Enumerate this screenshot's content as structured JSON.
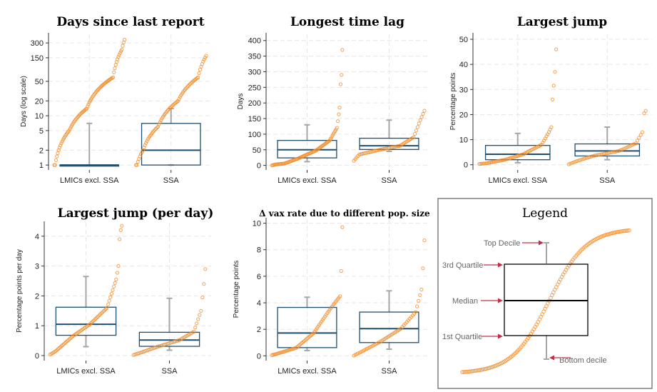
{
  "colors": {
    "box": "#1f4e6e",
    "whisker": "#a6a6a6",
    "point": "#f28c28",
    "point_light": "#f8b98a",
    "grid": "#e6e6e6",
    "legend_arrow": "#c0304a",
    "legend_border": "#7f7f7f"
  },
  "chart_data": [
    {
      "id": "days",
      "type": "box",
      "title": "Days since last report",
      "ylabel": "Days (log scale)",
      "yscale": "log",
      "ylim": [
        0.85,
        450
      ],
      "yticks": [
        1,
        2,
        5,
        10,
        20,
        50,
        150,
        300
      ],
      "categories": [
        "LMICs excl. SSA",
        "SSA"
      ],
      "boxes": [
        {
          "p10": 1,
          "q1": 1,
          "median": 1,
          "q3": 1,
          "p90": 7
        },
        {
          "p10": 1,
          "q1": 1,
          "median": 2,
          "q3": 7,
          "p90": 14
        }
      ],
      "points": [
        [
          [
            0,
            1,
            30
          ],
          [
            0.45,
            1,
            1
          ],
          [
            0.5,
            2,
            4
          ],
          [
            0.58,
            5,
            12
          ],
          [
            0.72,
            14,
            20
          ],
          [
            0.85,
            60,
            30
          ],
          [
            0.95,
            220,
            10
          ],
          [
            1,
            350,
            3
          ]
        ],
        [
          [
            0,
            1,
            25
          ],
          [
            0.35,
            1,
            1
          ],
          [
            0.4,
            2,
            6
          ],
          [
            0.55,
            6,
            15
          ],
          [
            0.7,
            20,
            20
          ],
          [
            0.85,
            60,
            20
          ],
          [
            1,
            165,
            8
          ]
        ]
      ]
    },
    {
      "id": "lag",
      "type": "box",
      "title": "Longest time lag",
      "ylabel": "Days",
      "yscale": "linear",
      "ylim": [
        -10,
        420
      ],
      "yticks": [
        0,
        50,
        100,
        150,
        200,
        250,
        300,
        350,
        400
      ],
      "categories": [
        "LMICs excl. SSA",
        "SSA"
      ],
      "boxes": [
        {
          "p10": 12,
          "q1": 24,
          "median": 50,
          "q3": 80,
          "p90": 130
        },
        {
          "p10": 45,
          "q1": 51,
          "median": 63,
          "q3": 87,
          "p90": 145
        }
      ],
      "points": [
        [
          [
            0,
            0,
            1
          ],
          [
            0.05,
            3,
            4
          ],
          [
            0.15,
            6,
            10
          ],
          [
            0.3,
            22,
            15
          ],
          [
            0.5,
            48,
            20
          ],
          [
            0.7,
            80,
            15
          ],
          [
            0.82,
            120,
            8
          ],
          [
            0.9,
            185,
            3
          ],
          [
            0.94,
            260,
            1
          ],
          [
            0.97,
            290,
            1
          ],
          [
            1,
            370,
            1
          ]
        ],
        [
          [
            0,
            15,
            1
          ],
          [
            0.08,
            35,
            4
          ],
          [
            0.3,
            50,
            15
          ],
          [
            0.55,
            63,
            15
          ],
          [
            0.75,
            90,
            10
          ],
          [
            0.88,
            145,
            5
          ],
          [
            1,
            175,
            3
          ]
        ]
      ]
    },
    {
      "id": "jump",
      "type": "box",
      "title": "Largest jump",
      "ylabel": "Percentage points",
      "yscale": "linear",
      "ylim": [
        -1.5,
        52
      ],
      "yticks": [
        0,
        10,
        20,
        30,
        40,
        50
      ],
      "categories": [
        "LMICs excl. SSA",
        "SSA"
      ],
      "boxes": [
        {
          "p10": 0.8,
          "q1": 2,
          "median": 4.2,
          "q3": 7.7,
          "p90": 12.5
        },
        {
          "p10": 2,
          "q1": 3.5,
          "median": 5.5,
          "q3": 8.3,
          "p90": 15
        }
      ],
      "points": [
        [
          [
            0,
            0.3,
            1
          ],
          [
            0.1,
            0.6,
            6
          ],
          [
            0.3,
            2,
            15
          ],
          [
            0.5,
            4.2,
            15
          ],
          [
            0.72,
            8,
            15
          ],
          [
            0.85,
            13,
            6
          ],
          [
            0.88,
            15,
            2
          ],
          [
            0.92,
            26,
            1
          ],
          [
            0.95,
            31.5,
            1
          ],
          [
            0.97,
            37,
            1
          ],
          [
            1,
            46,
            1
          ]
        ],
        [
          [
            0,
            0.2,
            1
          ],
          [
            0.1,
            1.5,
            5
          ],
          [
            0.3,
            3.6,
            10
          ],
          [
            0.55,
            5.5,
            15
          ],
          [
            0.75,
            8.5,
            10
          ],
          [
            0.88,
            13,
            4
          ],
          [
            0.94,
            20.5,
            1
          ],
          [
            1,
            21.5,
            1
          ]
        ]
      ]
    },
    {
      "id": "jumpday",
      "type": "box",
      "title": "Largest jump (per day)",
      "ylabel": "Percentage points per day",
      "yscale": "linear",
      "ylim": [
        -0.12,
        4.45
      ],
      "yticks": [
        0,
        1,
        2,
        3,
        4
      ],
      "categories": [
        "LMICs excl. SSA",
        "SSA"
      ],
      "boxes": [
        {
          "p10": 0.3,
          "q1": 0.68,
          "median": 1.05,
          "q3": 1.62,
          "p90": 2.65
        },
        {
          "p10": 0.18,
          "q1": 0.31,
          "median": 0.52,
          "q3": 0.78,
          "p90": 1.92
        }
      ],
      "points": [
        [
          [
            0,
            0.03,
            1
          ],
          [
            0.1,
            0.15,
            5
          ],
          [
            0.3,
            0.65,
            15
          ],
          [
            0.5,
            1.05,
            15
          ],
          [
            0.7,
            1.6,
            15
          ],
          [
            0.85,
            2.55,
            8
          ],
          [
            0.9,
            3,
            2
          ],
          [
            0.95,
            3.9,
            1
          ],
          [
            0.98,
            4.2,
            1
          ],
          [
            1,
            4.35,
            1
          ]
        ],
        [
          [
            0,
            0.02,
            1
          ],
          [
            0.1,
            0.1,
            5
          ],
          [
            0.3,
            0.3,
            12
          ],
          [
            0.55,
            0.52,
            15
          ],
          [
            0.75,
            0.8,
            10
          ],
          [
            0.88,
            1.5,
            5
          ],
          [
            0.95,
            2.4,
            2
          ],
          [
            1,
            2.9,
            1
          ]
        ]
      ]
    },
    {
      "id": "vax",
      "type": "box",
      "title": "Δ vax rate due to different pop. size",
      "ylabel": "Percentage points",
      "yscale": "linear",
      "ylim": [
        -0.25,
        10.3
      ],
      "yticks": [
        0,
        2,
        4,
        6,
        8,
        10
      ],
      "categories": [
        "LMICs excl. SSA",
        "SSA"
      ],
      "boxes": [
        {
          "p10": 0.4,
          "q1": 0.62,
          "median": 1.72,
          "q3": 3.65,
          "p90": 4.42
        },
        {
          "p10": 0.5,
          "q1": 1,
          "median": 2.05,
          "q3": 3.3,
          "p90": 4.9
        }
      ],
      "points": [
        [
          [
            0,
            0.05,
            1
          ],
          [
            0.1,
            0.2,
            6
          ],
          [
            0.3,
            0.6,
            15
          ],
          [
            0.5,
            1.7,
            15
          ],
          [
            0.72,
            3.6,
            15
          ],
          [
            0.85,
            4.5,
            8
          ],
          [
            0.93,
            6.4,
            1
          ],
          [
            1,
            9.7,
            1
          ]
        ],
        [
          [
            0,
            0.02,
            1
          ],
          [
            0.1,
            0.3,
            5
          ],
          [
            0.3,
            1,
            12
          ],
          [
            0.55,
            2.05,
            15
          ],
          [
            0.75,
            3.3,
            10
          ],
          [
            0.88,
            5,
            4
          ],
          [
            0.95,
            6.6,
            1
          ],
          [
            1,
            8.7,
            1
          ]
        ]
      ]
    }
  ],
  "legend": {
    "title": "Legend",
    "labels": {
      "top": "Top Decile",
      "q3": "3rd Quartile",
      "median": "Median",
      "q1": "1st Quartile",
      "bottom": "Bottom decile"
    }
  }
}
